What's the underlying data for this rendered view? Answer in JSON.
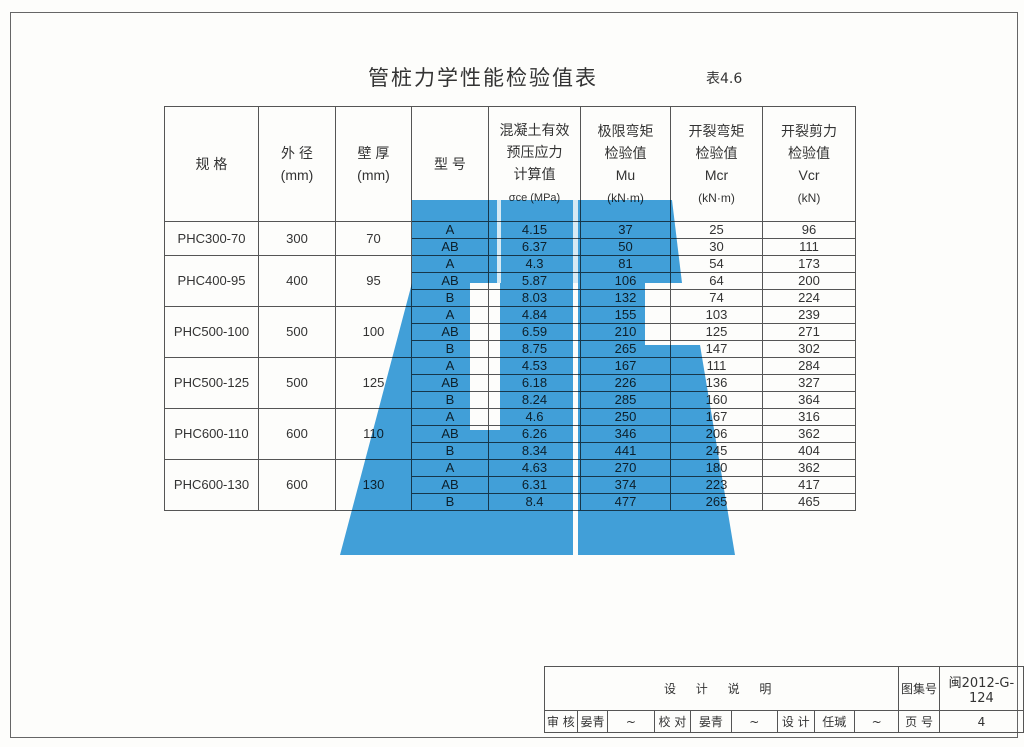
{
  "title": "管桩力学性能检验值表",
  "table_number": "表4.6",
  "headers": {
    "spec": "规 格",
    "od": [
      "外 径",
      "(mm)"
    ],
    "wall": [
      "壁 厚",
      "(mm)"
    ],
    "type": "型 号",
    "stress": [
      "混凝土有效",
      "预压应力",
      "计算值",
      "σce (MPa)"
    ],
    "mu": [
      "极限弯矩",
      "检验值",
      "Mu",
      "(kN·m)"
    ],
    "mcr": [
      "开裂弯矩",
      "检验值",
      "Mcr",
      "(kN·m)"
    ],
    "vcr": [
      "开裂剪力",
      "检验值",
      "Vcr",
      "(kN)"
    ]
  },
  "groups": [
    {
      "spec": "PHC300-70",
      "od": "300",
      "wall": "70",
      "rows": [
        [
          "A",
          "4.15",
          "37",
          "25",
          "96"
        ],
        [
          "AB",
          "6.37",
          "50",
          "30",
          "111"
        ]
      ]
    },
    {
      "spec": "PHC400-95",
      "od": "400",
      "wall": "95",
      "rows": [
        [
          "A",
          "4.3",
          "81",
          "54",
          "173"
        ],
        [
          "AB",
          "5.87",
          "106",
          "64",
          "200"
        ],
        [
          "B",
          "8.03",
          "132",
          "74",
          "224"
        ]
      ]
    },
    {
      "spec": "PHC500-100",
      "od": "500",
      "wall": "100",
      "rows": [
        [
          "A",
          "4.84",
          "155",
          "103",
          "239"
        ],
        [
          "AB",
          "6.59",
          "210",
          "125",
          "271"
        ],
        [
          "B",
          "8.75",
          "265",
          "147",
          "302"
        ]
      ]
    },
    {
      "spec": "PHC500-125",
      "od": "500",
      "wall": "125",
      "rows": [
        [
          "A",
          "4.53",
          "167",
          "111",
          "284"
        ],
        [
          "AB",
          "6.18",
          "226",
          "136",
          "327"
        ],
        [
          "B",
          "8.24",
          "285",
          "160",
          "364"
        ]
      ]
    },
    {
      "spec": "PHC600-110",
      "od": "600",
      "wall": "110",
      "rows": [
        [
          "A",
          "4.6",
          "250",
          "167",
          "316"
        ],
        [
          "AB",
          "6.26",
          "346",
          "206",
          "362"
        ],
        [
          "B",
          "8.34",
          "441",
          "245",
          "404"
        ]
      ]
    },
    {
      "spec": "PHC600-130",
      "od": "600",
      "wall": "130",
      "rows": [
        [
          "A",
          "4.63",
          "270",
          "180",
          "362"
        ],
        [
          "AB",
          "6.31",
          "374",
          "223",
          "417"
        ],
        [
          "B",
          "8.4",
          "477",
          "265",
          "465"
        ]
      ]
    }
  ],
  "title_block": {
    "drawing_title": "设 计 说 明",
    "atlas_label": "图集号",
    "atlas_no": "闽2012-G-124",
    "review_label": "审 核",
    "review_name": "晏青",
    "check_label": "校 对",
    "check_name": "晏青",
    "design_label": "设 计",
    "design_name": "任瑊",
    "page_label": "页 号",
    "page_no": "4"
  },
  "watermark_color": "#1f8fd6"
}
